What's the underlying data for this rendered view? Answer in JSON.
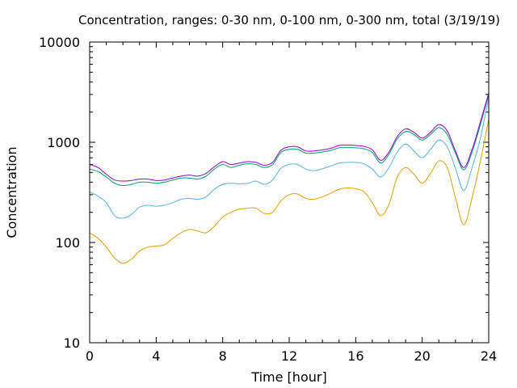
{
  "chart_data": {
    "type": "line",
    "title": "Concentration, ranges: 0-30 nm, 0-100 nm, 0-300 nm, total (3/19/19)",
    "xlabel": "Time [hour]",
    "ylabel": "Concentration",
    "xlim": [
      0,
      24
    ],
    "ylim": [
      10,
      10000
    ],
    "yscale": "log",
    "grid": false,
    "legend": "none",
    "x_ticks": [
      0,
      4,
      8,
      12,
      16,
      20,
      24
    ],
    "x_tick_labels": [
      "0",
      "4",
      "8",
      "12",
      "16",
      "20",
      "24"
    ],
    "y_ticks": [
      10,
      100,
      1000,
      10000
    ],
    "y_tick_labels": [
      "10",
      "100",
      "1000",
      "10000"
    ],
    "x": [
      0,
      0.5,
      1,
      1.5,
      2,
      2.5,
      3,
      3.5,
      4,
      4.5,
      5,
      5.5,
      6,
      6.5,
      7,
      7.5,
      8,
      8.5,
      9,
      9.5,
      10,
      10.5,
      11,
      11.5,
      12,
      12.5,
      13,
      13.5,
      14,
      14.5,
      15,
      15.5,
      16,
      16.5,
      17,
      17.5,
      18,
      18.5,
      19,
      19.5,
      20,
      20.5,
      21,
      21.5,
      22,
      22.5,
      23,
      23.5,
      24
    ],
    "series": [
      {
        "color": "#e69f00",
        "values": [
          125,
          110,
          90,
          70,
          62,
          68,
          82,
          90,
          92,
          95,
          110,
          125,
          135,
          130,
          125,
          145,
          180,
          200,
          215,
          220,
          220,
          195,
          200,
          260,
          300,
          305,
          275,
          270,
          285,
          310,
          340,
          350,
          345,
          320,
          250,
          185,
          240,
          450,
          560,
          480,
          390,
          490,
          650,
          560,
          280,
          150,
          280,
          650,
          1700
        ]
      },
      {
        "color": "#56b4e9",
        "values": [
          320,
          290,
          250,
          185,
          175,
          190,
          225,
          235,
          230,
          235,
          250,
          270,
          275,
          270,
          285,
          340,
          380,
          390,
          385,
          390,
          410,
          380,
          420,
          550,
          600,
          600,
          540,
          520,
          545,
          580,
          620,
          630,
          630,
          610,
          540,
          450,
          560,
          800,
          960,
          820,
          700,
          850,
          1050,
          900,
          550,
          330,
          560,
          1100,
          2800
        ]
      },
      {
        "color": "#009e73",
        "values": [
          540,
          510,
          450,
          390,
          370,
          380,
          400,
          400,
          390,
          400,
          420,
          440,
          440,
          430,
          460,
          540,
          600,
          560,
          590,
          610,
          600,
          560,
          600,
          790,
          850,
          850,
          780,
          780,
          800,
          830,
          880,
          890,
          880,
          860,
          790,
          620,
          760,
          1080,
          1280,
          1200,
          1050,
          1200,
          1400,
          1200,
          780,
          530,
          800,
          1500,
          3000
        ]
      },
      {
        "color": "#9400d3",
        "values": [
          600,
          560,
          480,
          420,
          410,
          415,
          430,
          430,
          415,
          420,
          440,
          460,
          470,
          460,
          490,
          570,
          640,
          600,
          620,
          640,
          630,
          590,
          630,
          830,
          900,
          900,
          820,
          820,
          840,
          870,
          930,
          940,
          930,
          910,
          840,
          660,
          800,
          1140,
          1360,
          1260,
          1100,
          1260,
          1500,
          1300,
          820,
          560,
          850,
          1600,
          3100
        ]
      }
    ]
  }
}
